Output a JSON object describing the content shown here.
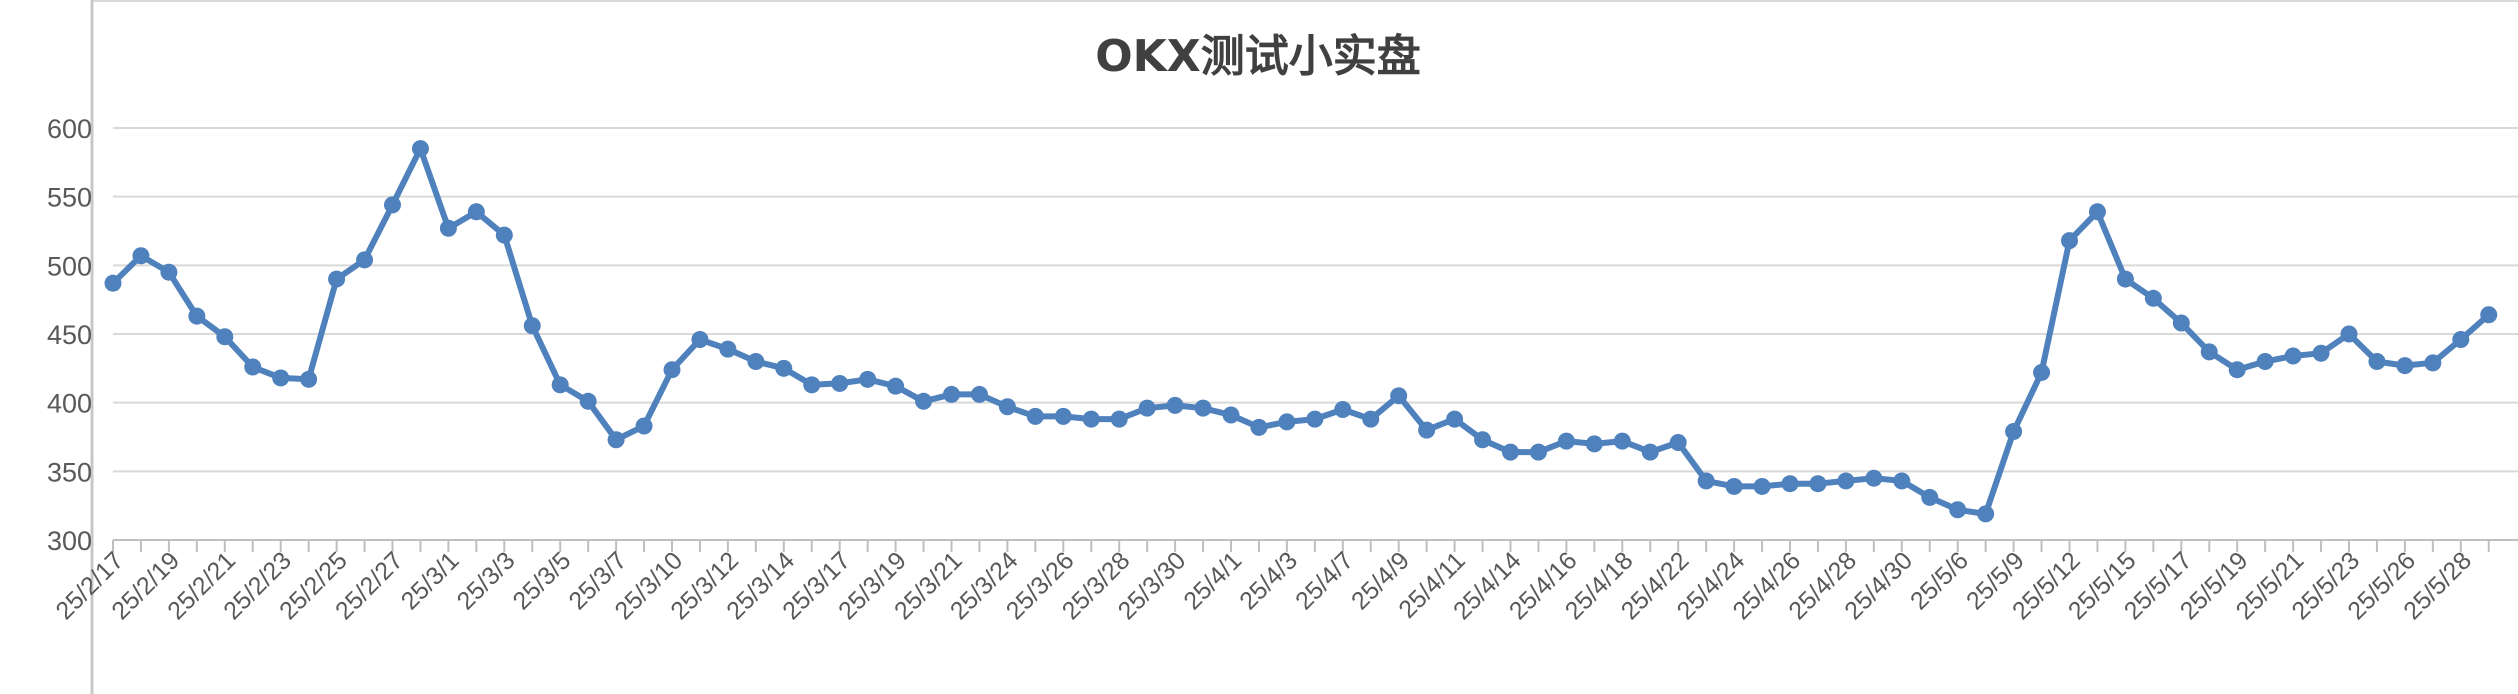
{
  "chart_data": {
    "type": "line",
    "title": "OKX测试小实盘",
    "xlabel": "",
    "ylabel": "",
    "ylim": [
      300,
      600
    ],
    "yticks": [
      300,
      350,
      400,
      450,
      500,
      550,
      600
    ],
    "grid": "horizontal",
    "legend": "none",
    "x_tick_labels": [
      "25/2/17",
      "25/2/19",
      "25/2/21",
      "25/2/23",
      "25/2/25",
      "25/2/27",
      "25/3/1",
      "25/3/3",
      "25/3/5",
      "25/3/7",
      "25/3/10",
      "25/3/12",
      "25/3/14",
      "25/3/17",
      "25/3/19",
      "25/3/21",
      "25/3/24",
      "25/3/26",
      "25/3/28",
      "25/3/30",
      "25/4/1",
      "25/4/3",
      "25/4/7",
      "25/4/9",
      "25/4/11",
      "25/4/14",
      "25/4/16",
      "25/4/18",
      "25/4/22",
      "25/4/24",
      "25/4/26",
      "25/4/28",
      "25/4/30",
      "25/5/6",
      "25/5/9",
      "25/5/12",
      "25/5/15",
      "25/5/17",
      "25/5/19",
      "25/5/21",
      "25/5/23",
      "25/5/26",
      "25/5/28"
    ],
    "series": [
      {
        "color": "#4f81bd",
        "values": [
          487,
          507,
          495,
          463,
          448,
          426,
          418,
          417,
          490,
          504,
          544,
          585,
          527,
          539,
          522,
          456,
          413,
          401,
          373,
          383,
          424,
          446,
          439,
          430,
          425,
          413,
          414,
          417,
          412,
          401,
          406,
          406,
          397,
          390,
          390,
          388,
          388,
          396,
          398,
          396,
          391,
          382,
          386,
          388,
          395,
          388,
          405,
          380,
          388,
          373,
          364,
          364,
          372,
          370,
          372,
          364,
          371,
          343,
          339,
          339,
          341,
          341,
          343,
          345,
          343,
          331,
          322,
          319,
          379,
          422,
          518,
          539,
          490,
          476,
          458,
          437,
          424,
          430,
          434,
          436,
          450,
          430,
          427,
          429,
          446,
          464
        ]
      }
    ]
  }
}
